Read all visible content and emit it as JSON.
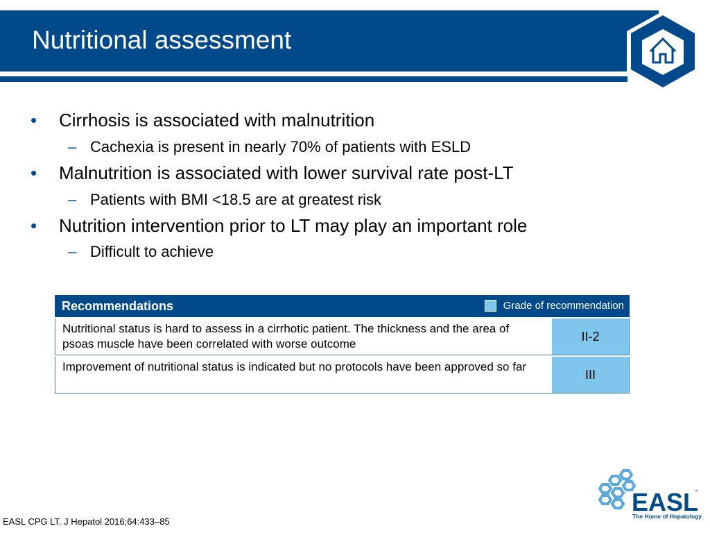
{
  "header": {
    "title": "Nutritional assessment"
  },
  "bullets": [
    {
      "text": "Cirrhosis is associated with malnutrition",
      "sub": [
        "Cachexia is present in nearly 70% of patients with ESLD"
      ]
    },
    {
      "text": "Malnutrition is associated with lower survival rate post-LT",
      "sub": [
        "Patients with BMI <18.5 are at greatest risk"
      ]
    },
    {
      "text": "Nutrition intervention prior to LT may play an important role",
      "sub": [
        "Difficult to achieve"
      ]
    }
  ],
  "table": {
    "title": "Recommendations",
    "legend": "Grade of recommendation",
    "rows": [
      {
        "text": "Nutritional status is hard to assess in a cirrhotic patient. The thickness and the area of psoas muscle have been correlated with worse outcome",
        "grade": "II-2"
      },
      {
        "text": "Improvement of nutritional status is indicated but no protocols have been approved so far",
        "grade": "III"
      }
    ]
  },
  "logo": {
    "name": "EASL",
    "trademark": "™",
    "tagline": "The Home of Hepatology"
  },
  "footer": {
    "citation": "EASL CPG LT. J Hepatol 2016;64:433–85"
  }
}
